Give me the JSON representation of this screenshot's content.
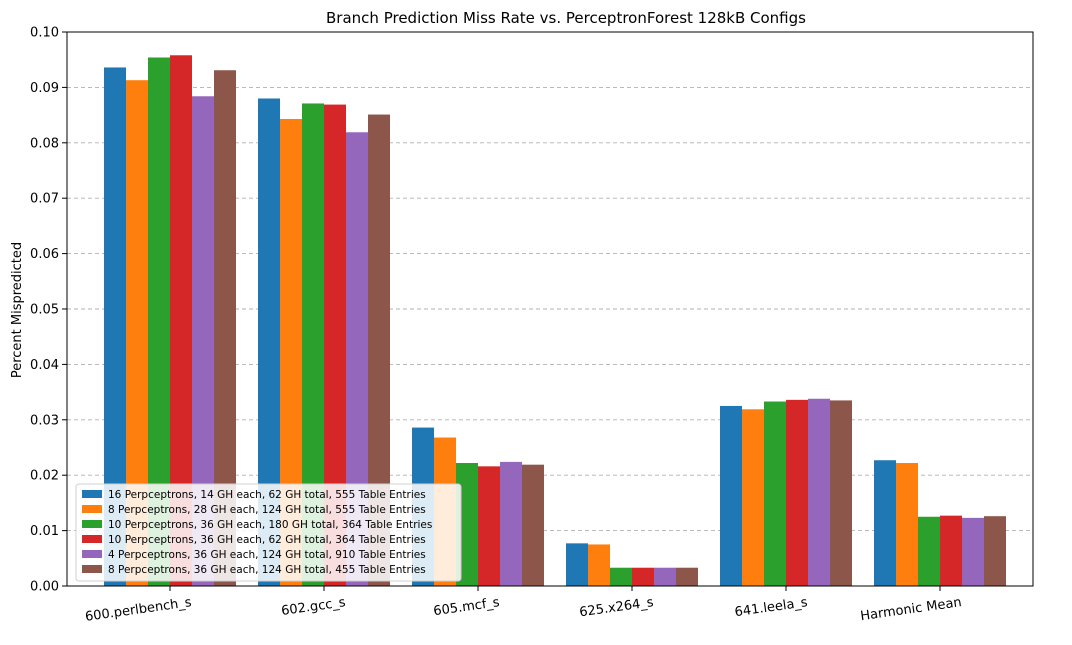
{
  "chart_data": {
    "type": "bar",
    "title": "Branch Prediction Miss Rate vs. PerceptronForest 128kB Configs",
    "xlabel": "",
    "ylabel": "Percent Mispredicted",
    "ylim": [
      0,
      0.1
    ],
    "yticks": [
      "0.00",
      "0.01",
      "0.02",
      "0.03",
      "0.04",
      "0.05",
      "0.06",
      "0.07",
      "0.08",
      "0.09",
      "0.10"
    ],
    "grid": "y-dashed",
    "legend_position": "lower-left",
    "categories": [
      "600.perlbench_s",
      "602.gcc_s",
      "605.mcf_s",
      "625.x264_s",
      "641.leela_s",
      "Harmonic Mean"
    ],
    "series": [
      {
        "name": "16 Perpceptrons, 14 GH each, 62 GH total, 555 Table Entries",
        "color": "#1f77b4",
        "values": [
          0.0936,
          0.088,
          0.0286,
          0.0077,
          0.0325,
          0.0227
        ]
      },
      {
        "name": "8 Perpceptrons, 28 GH each, 124 GH total, 555 Table Entries",
        "color": "#ff7f0e",
        "values": [
          0.0913,
          0.0843,
          0.0268,
          0.0075,
          0.0319,
          0.0222
        ]
      },
      {
        "name": "10 Perpceptrons, 36 GH each, 180 GH total, 364 Table Entries",
        "color": "#2ca02c",
        "values": [
          0.0954,
          0.0871,
          0.0222,
          0.0033,
          0.0333,
          0.0125
        ]
      },
      {
        "name": "10 Perpceptrons, 36 GH each, 62 GH total, 364 Table Entries",
        "color": "#d62728",
        "values": [
          0.0958,
          0.0869,
          0.0216,
          0.0033,
          0.0336,
          0.0127
        ]
      },
      {
        "name": "4 Perpceptrons, 36 GH each, 124 GH total, 910 Table Entries",
        "color": "#9467bd",
        "values": [
          0.0884,
          0.0819,
          0.0224,
          0.0033,
          0.0338,
          0.0123
        ]
      },
      {
        "name": "8 Perpceptrons, 36 GH each, 124 GH total, 455 Table Entries",
        "color": "#8c564b",
        "values": [
          0.0931,
          0.0851,
          0.0219,
          0.0033,
          0.0335,
          0.0126
        ]
      }
    ]
  }
}
